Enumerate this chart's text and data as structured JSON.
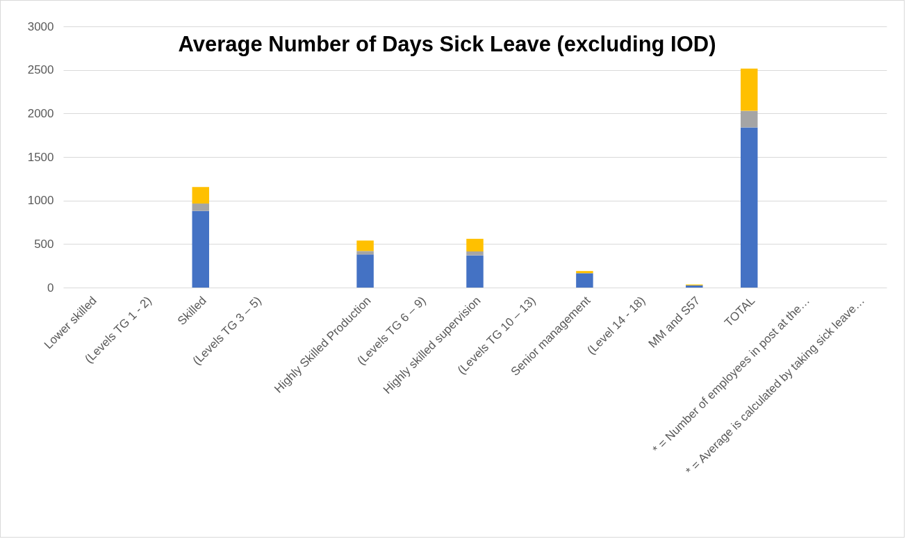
{
  "chart_data": {
    "type": "bar",
    "title": "Average Number of Days Sick Leave (excluding IOD)",
    "categories": [
      "Lower skilled",
      "(Levels TG 1 - 2)",
      "Skilled",
      "(Levels TG 3 – 5)",
      null,
      "Highly Skilled Production",
      "(Levels TG 6 – 9)",
      "Highly skilled supervision",
      "(Levels TG 10 – 13)",
      "Senior management",
      "(Level 14 - 18)",
      "MM and S57",
      "TOTAL",
      "*  =  Number of employees in post at the…",
      "*  =  Average is calculated by taking sick leave…"
    ],
    "series": [
      {
        "color": "#4472c4",
        "values": [
          null,
          null,
          880,
          null,
          null,
          380,
          null,
          370,
          null,
          165,
          null,
          25,
          1840,
          null,
          null
        ]
      },
      {
        "color": "#a5a5a5",
        "values": [
          null,
          null,
          85,
          null,
          null,
          40,
          null,
          45,
          null,
          null,
          null,
          null,
          190,
          null,
          null
        ]
      },
      {
        "color": "#ffc000",
        "values": [
          null,
          null,
          190,
          null,
          null,
          120,
          null,
          145,
          null,
          25,
          null,
          10,
          485,
          null,
          null
        ]
      }
    ],
    "stacked": true,
    "ylim": [
      0,
      3000
    ],
    "yticks": [
      0,
      500,
      1000,
      1500,
      2000,
      2500,
      3000
    ],
    "grid": "y",
    "legend": false
  }
}
